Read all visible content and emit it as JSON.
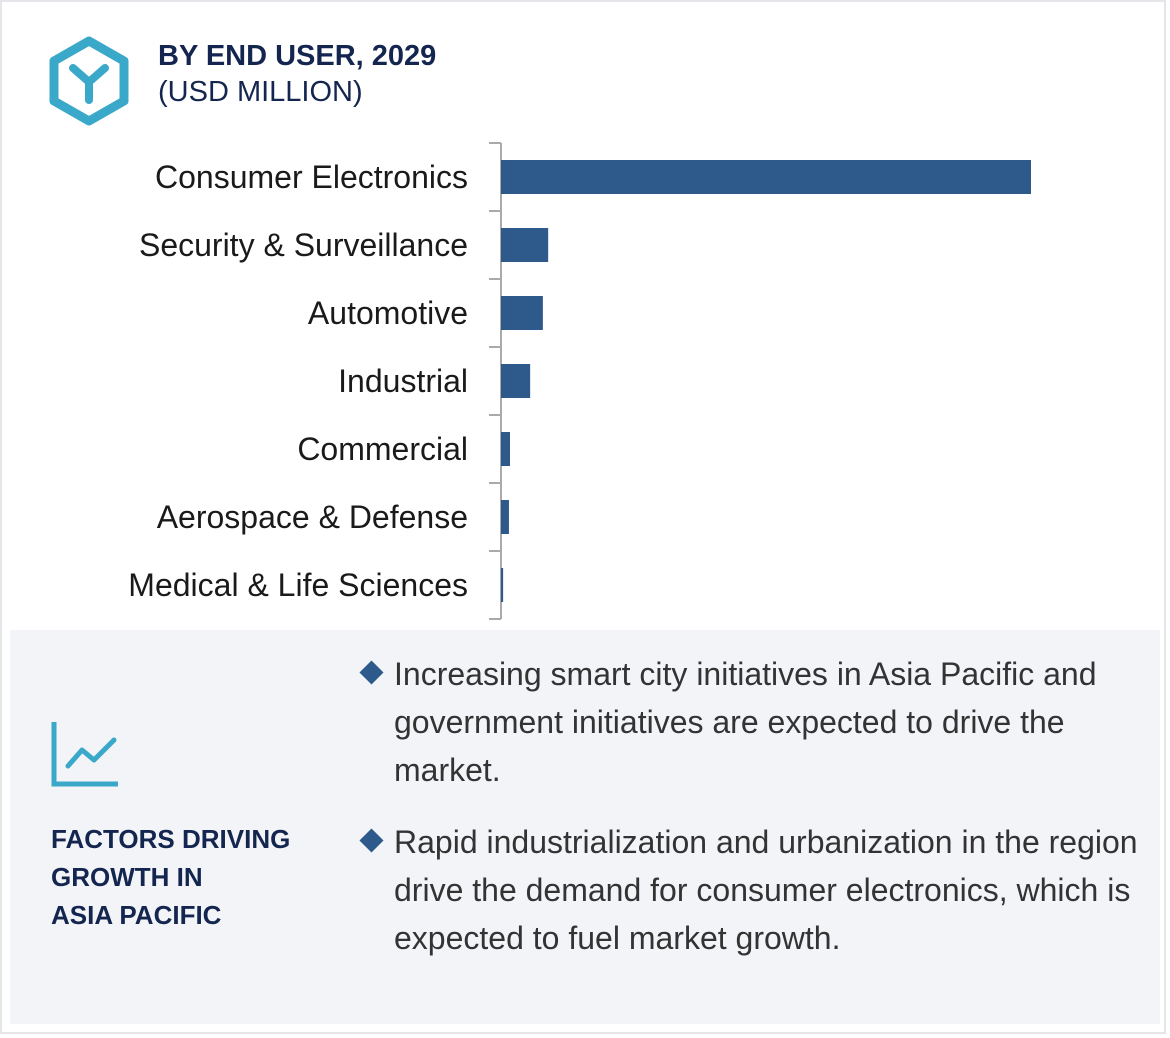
{
  "header": {
    "title": "BY END USER, 2029",
    "subtitle": "(USD MILLION)",
    "icon": "hexagon-y-icon"
  },
  "colors": {
    "bar": "#2d5a8a",
    "accent": "#3aa8c8",
    "title": "#14264f",
    "panel": "#f3f4f8"
  },
  "chart_data": {
    "type": "bar",
    "orientation": "horizontal",
    "title": "BY END USER, 2029 (USD MILLION)",
    "categories": [
      "Consumer Electronics",
      "Security & Surveillance",
      "Automotive",
      "Industrial",
      "Commercial",
      "Aerospace & Defense",
      "Medical & Life Sciences"
    ],
    "values": [
      100,
      8.9,
      7.9,
      5.5,
      1.7,
      1.5,
      0.4
    ],
    "value_note": "relative to largest bar (no numeric labels shown)",
    "xlabel": "",
    "ylabel": "",
    "xlim": [
      0,
      100
    ],
    "grid": false
  },
  "factors": {
    "heading_lines": [
      "FACTORS DRIVING",
      "GROWTH IN",
      "ASIA PACIFIC"
    ],
    "icon": "line-chart-icon",
    "bullets": [
      "Increasing smart city initiatives in Asia Pacific and government initiatives are expected to drive the market.",
      "Rapid industrialization and urbanization in the region drive the demand for consumer electronics, which is expected to fuel market growth."
    ]
  }
}
